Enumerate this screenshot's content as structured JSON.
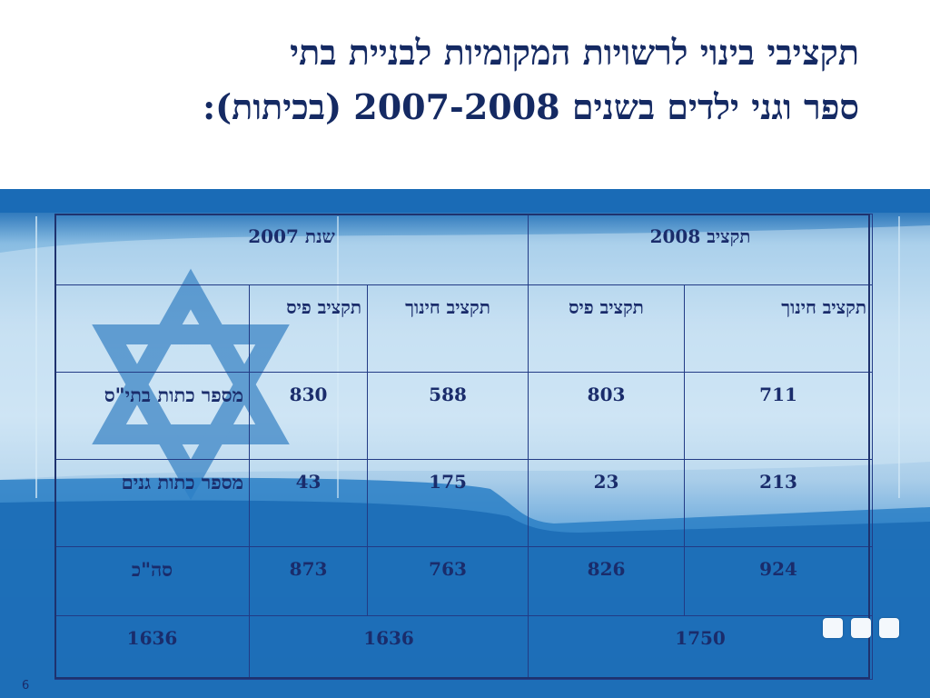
{
  "slide": {
    "title_line1": "תקציבי בינוי לרשויות המקומיות לבניית בתי",
    "title_line2": "ספר וגני ילדים בשנים 2007-2008 (בכיתות):",
    "page_number": "6"
  },
  "table": {
    "group_headers": {
      "y2008": "תקציב 2008",
      "y2007": "שנת 2007"
    },
    "sub_headers": {
      "c2008_edu": "תקציב חינוך",
      "c2008_pis": "תקציב פיס",
      "c2007_edu": "תקציב חינוך",
      "c2007_pis": "תקציב פיס"
    },
    "rows": [
      {
        "label": "מספר כתות בתי\"ס",
        "c2008_edu": "711",
        "c2008_pis": "803",
        "c2007_edu": "588",
        "c2007_pis": "830"
      },
      {
        "label": "מספר כתות גנים",
        "c2008_edu": "213",
        "c2008_pis": "23",
        "c2007_edu": "175",
        "c2007_pis": "43"
      },
      {
        "label": "סה\"כ",
        "c2008_edu": "924",
        "c2008_pis": "826",
        "c2007_edu": "763",
        "c2007_pis": "873"
      }
    ],
    "totals": {
      "y2008": "1750",
      "y2007": "1636",
      "all": "1636"
    }
  },
  "theme": {
    "title_color": "#152a63",
    "banner_blue": "#1b6fb8",
    "table_text": "#1a2c6b"
  }
}
